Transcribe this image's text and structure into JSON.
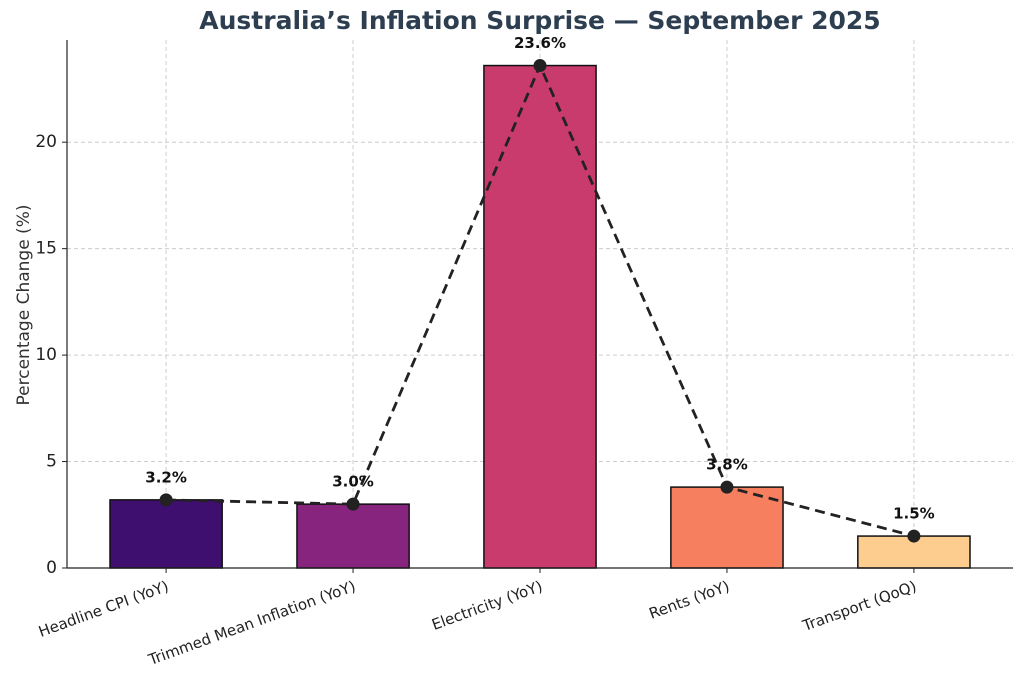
{
  "chart_data": {
    "type": "bar",
    "title": "Australia’s Inflation Surprise — September 2025",
    "y_label": "Percentage Change (%)",
    "categories": [
      "Headline CPI (YoY)",
      "Trimmed Mean Inflation (YoY)",
      "Electricity (YoY)",
      "Rents (YoY)",
      "Transport (QoQ)"
    ],
    "values": [
      3.2,
      3.0,
      23.6,
      3.8,
      1.5
    ],
    "value_labels": [
      "3.2%",
      "3.0%",
      "23.6%",
      "3.8%",
      "1.5%"
    ],
    "colors": [
      "#3e0f6e",
      "#87257e",
      "#c93b6c",
      "#f57f5f",
      "#fccd8f"
    ],
    "line_overlay": true,
    "line_color": "#222222",
    "ylim": [
      0,
      24.8
    ],
    "yticks": [
      0,
      5,
      10,
      15,
      20
    ],
    "grid": true
  }
}
